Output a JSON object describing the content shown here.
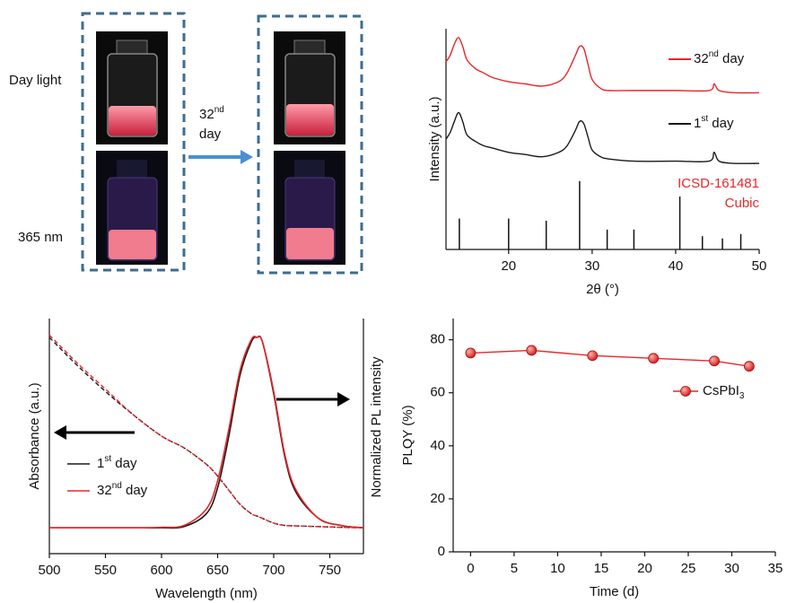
{
  "photo_panel": {
    "row_labels": [
      "Day light",
      "365 nm"
    ],
    "arrow_label": "32nd day"
  },
  "chart_data": [
    {
      "type": "xrd",
      "xlabel": "2θ (°)",
      "ylabel": "Intensity (a.u.)",
      "xlim": [
        12.5,
        50
      ],
      "ylim": [
        0,
        100
      ],
      "xticks": [
        20,
        30,
        40,
        50
      ],
      "x": [
        12.5,
        13,
        13.5,
        14,
        14.5,
        15,
        16,
        17,
        18,
        20,
        22,
        24,
        26,
        27,
        28,
        28.5,
        29,
        29.5,
        30,
        31,
        32,
        35,
        40,
        44,
        44.6,
        45.2,
        47,
        50
      ],
      "series": [
        {
          "name": "32nd day",
          "color": "#e8262a",
          "values": [
            85,
            88,
            93,
            96,
            92,
            86,
            82,
            80,
            78,
            76,
            75,
            74,
            76,
            80,
            88,
            92,
            91,
            84,
            77,
            73,
            72,
            72,
            72,
            72,
            75,
            72,
            71,
            71
          ]
        },
        {
          "name": "1st day",
          "color": "#1a1a1a",
          "values": [
            50,
            53,
            58,
            62,
            58,
            52,
            49,
            47,
            46,
            44,
            43,
            42,
            44,
            47,
            54,
            58,
            57,
            51,
            45,
            42,
            41,
            40,
            40,
            40,
            44,
            40,
            39,
            39
          ]
        }
      ],
      "reference": {
        "name": "ICSD-161481",
        "label": "Cubic",
        "color": "#e8262a",
        "x": [
          14.1,
          20,
          24.5,
          28.5,
          31.8,
          35,
          40.5,
          43.2,
          45.6,
          47.8
        ],
        "values": [
          14,
          14,
          13,
          31,
          9,
          9,
          24,
          6,
          5,
          7
        ]
      }
    },
    {
      "type": "spectra",
      "xlabel": "Wavelength (nm)",
      "ylabel": "Absorbance (a.u.)",
      "y2label": "Normalized PL intensity",
      "xlim": [
        500,
        780
      ],
      "ylim": [
        0,
        1
      ],
      "y2lim": [
        0,
        1
      ],
      "xticks": [
        500,
        550,
        600,
        650,
        700,
        750
      ],
      "x": [
        500,
        525,
        550,
        575,
        600,
        620,
        640,
        650,
        660,
        670,
        680,
        685,
        690,
        700,
        710,
        720,
        740,
        760,
        780
      ],
      "series": [
        {
          "name": "1st day",
          "color": "#1a1a1a",
          "values": [
            0.92,
            0.8,
            0.69,
            0.59,
            0.5,
            0.45,
            0.38,
            0.33,
            0.27,
            0.21,
            0.17,
            0.16,
            0.15,
            0.13,
            0.12,
            0.118,
            0.115,
            0.112,
            0.11
          ],
          "pl_values": [
            0.11,
            0.11,
            0.11,
            0.11,
            0.11,
            0.115,
            0.17,
            0.28,
            0.5,
            0.76,
            0.9,
            0.92,
            0.9,
            0.68,
            0.41,
            0.26,
            0.15,
            0.12,
            0.11
          ]
        },
        {
          "name": "32nd day",
          "color": "#e8262a",
          "values": [
            0.93,
            0.81,
            0.7,
            0.59,
            0.5,
            0.45,
            0.38,
            0.33,
            0.27,
            0.21,
            0.17,
            0.16,
            0.15,
            0.13,
            0.12,
            0.118,
            0.115,
            0.112,
            0.11
          ],
          "pl_values": [
            0.11,
            0.11,
            0.11,
            0.11,
            0.112,
            0.12,
            0.19,
            0.31,
            0.53,
            0.78,
            0.91,
            0.92,
            0.9,
            0.69,
            0.42,
            0.27,
            0.15,
            0.12,
            0.11
          ]
        }
      ]
    },
    {
      "type": "line",
      "xlabel": "Time (d)",
      "ylabel": "PLQY (%)",
      "xlim": [
        -2,
        35
      ],
      "ylim": [
        0,
        88
      ],
      "xticks": [
        0,
        5,
        10,
        15,
        20,
        25,
        30,
        35
      ],
      "yticks": [
        0,
        20,
        40,
        60,
        80
      ],
      "x": [
        0,
        7,
        14,
        21,
        28,
        32
      ],
      "series": [
        {
          "name": "CsPbI3",
          "color": "#e8262a",
          "values": [
            75,
            76,
            74,
            73,
            72,
            70
          ]
        }
      ]
    }
  ]
}
